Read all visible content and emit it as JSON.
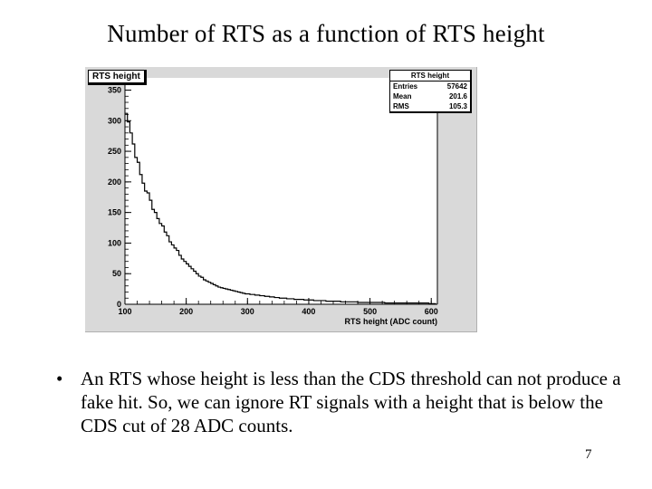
{
  "slide": {
    "title": "Number of RTS as a function of RTS height",
    "bullet_marker": "•",
    "bullet_text": "An RTS whose height is less than the CDS threshold can not produce a fake hit. So, we can ignore RT signals with a height that is below the CDS cut of  28 ADC counts.",
    "page_number": "7"
  },
  "chart_data": {
    "type": "bar",
    "title": "RTS height",
    "xlabel": "RTS height (ADC count)",
    "ylabel": "",
    "xlim": [
      100,
      610
    ],
    "ylim": [
      0,
      370
    ],
    "x_ticks": [
      "100",
      "200",
      "300",
      "400",
      "500",
      "600"
    ],
    "y_ticks": [
      "0",
      "50",
      "100",
      "150",
      "200",
      "250",
      "300",
      "350"
    ],
    "grid": false,
    "stats": {
      "title": "RTS height",
      "rows": [
        {
          "label": "Entries",
          "value": "57642"
        },
        {
          "label": "Mean",
          "value": "201.6"
        },
        {
          "label": "RMS",
          "value": "105.3"
        }
      ]
    },
    "x": [
      102,
      106,
      110,
      114,
      118,
      122,
      126,
      130,
      134,
      138,
      142,
      146,
      150,
      154,
      158,
      162,
      166,
      170,
      174,
      178,
      182,
      186,
      190,
      194,
      198,
      202,
      206,
      210,
      214,
      218,
      222,
      226,
      230,
      234,
      238,
      242,
      246,
      250,
      254,
      258,
      262,
      266,
      270,
      274,
      278,
      282,
      286,
      290,
      294,
      298,
      302,
      306,
      310,
      314,
      318,
      322,
      326,
      330,
      334,
      338,
      342,
      346,
      350,
      354,
      358,
      362,
      366,
      370,
      374,
      378,
      382,
      386,
      390,
      394,
      398,
      402,
      406,
      410,
      414,
      418,
      422,
      426,
      430,
      434,
      438,
      442,
      446,
      450,
      454,
      458,
      462,
      466,
      470,
      474,
      478,
      482,
      486,
      490,
      494,
      498,
      502,
      506,
      510,
      514,
      518,
      522,
      526,
      530,
      534,
      538,
      542,
      546,
      550,
      554,
      558,
      562,
      566,
      570,
      574,
      578,
      582,
      586,
      590,
      594,
      598,
      602,
      606
    ],
    "values": [
      312,
      298,
      280,
      262,
      240,
      232,
      212,
      198,
      185,
      182,
      170,
      155,
      150,
      140,
      132,
      128,
      118,
      112,
      102,
      97,
      92,
      88,
      80,
      74,
      70,
      66,
      62,
      58,
      54,
      50,
      46,
      44,
      40,
      38,
      36,
      34,
      32,
      30,
      28,
      27,
      26,
      25,
      24,
      23,
      22,
      21,
      20,
      19,
      18,
      17,
      17,
      16,
      16,
      15,
      15,
      14,
      14,
      13,
      13,
      12,
      12,
      11,
      11,
      10,
      10,
      10,
      9,
      9,
      9,
      8,
      8,
      8,
      8,
      7,
      7,
      7,
      7,
      6,
      6,
      6,
      6,
      6,
      5,
      5,
      5,
      5,
      5,
      5,
      4,
      4,
      4,
      4,
      4,
      4,
      4,
      3,
      3,
      3,
      3,
      3,
      3,
      3,
      3,
      3,
      3,
      3,
      2,
      2,
      2,
      2,
      2,
      2,
      2,
      2,
      2,
      2,
      2,
      2,
      2,
      2,
      2,
      2,
      2,
      2,
      1,
      1,
      1
    ]
  }
}
